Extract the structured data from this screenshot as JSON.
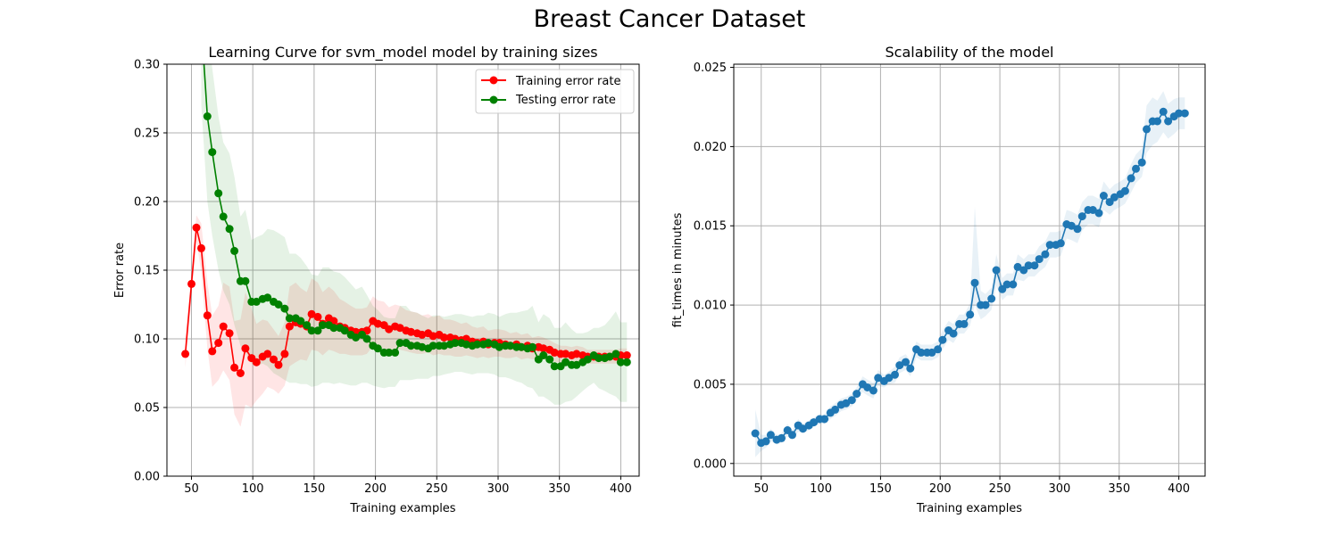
{
  "figure": {
    "title": "Breast Cancer Dataset"
  },
  "colors": {
    "train": "#ff0000",
    "test": "#008000",
    "fit": "#1f77b4",
    "grid": "#b0b0b0"
  },
  "chart_data": [
    {
      "type": "line",
      "title": "Learning Curve for svm_model model by training sizes",
      "xlabel": "Training examples",
      "ylabel": "Error rate",
      "xlim": [
        30,
        415
      ],
      "ylim": [
        0.0,
        0.3
      ],
      "xticks": [
        50,
        100,
        150,
        200,
        250,
        300,
        350,
        400
      ],
      "yticks": [
        0.0,
        0.05,
        0.1,
        0.15,
        0.2,
        0.25,
        0.3
      ],
      "ytick_labels": [
        "0.00",
        "0.05",
        "0.10",
        "0.15",
        "0.20",
        "0.25",
        "0.30"
      ],
      "grid": true,
      "legend": "top-right",
      "x": [
        45,
        50,
        54,
        58,
        63,
        67,
        72,
        76,
        81,
        85,
        90,
        94,
        99,
        103,
        108,
        112,
        117,
        121,
        126,
        130,
        135,
        139,
        144,
        148,
        153,
        157,
        162,
        166,
        171,
        175,
        180,
        184,
        189,
        193,
        198,
        202,
        207,
        211,
        216,
        220,
        225,
        229,
        234,
        238,
        243,
        247,
        252,
        256,
        261,
        265,
        270,
        274,
        279,
        283,
        288,
        292,
        297,
        301,
        306,
        310,
        315,
        319,
        324,
        328,
        333,
        337,
        342,
        346,
        351,
        355,
        360,
        364,
        369,
        373,
        378,
        382,
        387,
        391,
        396,
        400,
        405
      ],
      "series": [
        {
          "name": "Training error rate",
          "color": "#ff0000",
          "values": [
            0.089,
            0.14,
            0.181,
            0.166,
            0.117,
            0.091,
            0.097,
            0.109,
            0.104,
            0.079,
            0.075,
            0.093,
            0.086,
            0.083,
            0.087,
            0.089,
            0.085,
            0.081,
            0.089,
            0.109,
            0.112,
            0.111,
            0.109,
            0.118,
            0.116,
            0.111,
            0.115,
            0.113,
            0.109,
            0.108,
            0.106,
            0.105,
            0.105,
            0.106,
            0.113,
            0.111,
            0.11,
            0.107,
            0.109,
            0.108,
            0.106,
            0.105,
            0.104,
            0.103,
            0.104,
            0.102,
            0.103,
            0.101,
            0.101,
            0.1,
            0.099,
            0.1,
            0.098,
            0.097,
            0.098,
            0.096,
            0.097,
            0.097,
            0.096,
            0.095,
            0.096,
            0.094,
            0.095,
            0.093,
            0.094,
            0.093,
            0.092,
            0.09,
            0.089,
            0.089,
            0.088,
            0.089,
            0.088,
            0.087,
            0.087,
            0.087,
            0.087,
            0.087,
            0.087,
            0.088,
            0.088
          ],
          "lower": [
            0.079,
            0.13,
            0.172,
            0.148,
            0.093,
            0.065,
            0.07,
            0.077,
            0.07,
            0.045,
            0.036,
            0.052,
            0.05,
            0.055,
            0.06,
            0.065,
            0.063,
            0.06,
            0.066,
            0.08,
            0.083,
            0.085,
            0.084,
            0.092,
            0.091,
            0.088,
            0.092,
            0.091,
            0.089,
            0.089,
            0.088,
            0.088,
            0.088,
            0.089,
            0.095,
            0.094,
            0.093,
            0.091,
            0.093,
            0.092,
            0.091,
            0.09,
            0.089,
            0.089,
            0.09,
            0.088,
            0.089,
            0.088,
            0.088,
            0.087,
            0.087,
            0.088,
            0.087,
            0.086,
            0.087,
            0.086,
            0.087,
            0.087,
            0.086,
            0.086,
            0.087,
            0.085,
            0.086,
            0.085,
            0.086,
            0.085,
            0.085,
            0.083,
            0.083,
            0.083,
            0.082,
            0.083,
            0.082,
            0.082,
            0.082,
            0.082,
            0.082,
            0.082,
            0.082,
            0.083,
            0.083
          ],
          "upper": [
            0.099,
            0.15,
            0.19,
            0.184,
            0.141,
            0.117,
            0.124,
            0.141,
            0.138,
            0.113,
            0.114,
            0.134,
            0.122,
            0.111,
            0.114,
            0.113,
            0.107,
            0.102,
            0.112,
            0.138,
            0.141,
            0.137,
            0.134,
            0.144,
            0.141,
            0.134,
            0.138,
            0.135,
            0.129,
            0.127,
            0.124,
            0.122,
            0.122,
            0.123,
            0.131,
            0.128,
            0.127,
            0.123,
            0.125,
            0.124,
            0.121,
            0.12,
            0.119,
            0.117,
            0.118,
            0.116,
            0.117,
            0.114,
            0.114,
            0.113,
            0.111,
            0.112,
            0.109,
            0.108,
            0.109,
            0.106,
            0.107,
            0.107,
            0.106,
            0.104,
            0.105,
            0.103,
            0.104,
            0.101,
            0.102,
            0.101,
            0.099,
            0.097,
            0.095,
            0.095,
            0.094,
            0.095,
            0.094,
            0.092,
            0.092,
            0.092,
            0.092,
            0.092,
            0.092,
            0.093,
            0.093
          ]
        },
        {
          "name": "Testing error rate",
          "color": "#008000",
          "values": [
            null,
            null,
            null,
            0.33,
            0.262,
            0.236,
            0.206,
            0.189,
            0.18,
            0.164,
            0.142,
            0.142,
            0.127,
            0.127,
            0.129,
            0.13,
            0.127,
            0.125,
            0.122,
            0.115,
            0.115,
            0.113,
            0.11,
            0.106,
            0.106,
            0.11,
            0.11,
            0.108,
            0.108,
            0.106,
            0.103,
            0.101,
            0.103,
            0.1,
            0.095,
            0.093,
            0.09,
            0.09,
            0.09,
            0.097,
            0.097,
            0.095,
            0.095,
            0.094,
            0.093,
            0.095,
            0.095,
            0.095,
            0.096,
            0.097,
            0.097,
            0.096,
            0.095,
            0.096,
            0.096,
            0.097,
            0.096,
            0.094,
            0.095,
            0.095,
            0.094,
            0.094,
            0.093,
            0.094,
            0.085,
            0.088,
            0.085,
            0.08,
            0.08,
            0.083,
            0.081,
            0.081,
            0.083,
            0.085,
            0.088,
            0.086,
            0.086,
            0.087,
            0.089,
            0.083,
            0.083
          ],
          "lower": [
            null,
            null,
            null,
            0.27,
            0.2,
            0.175,
            0.15,
            0.135,
            0.125,
            0.11,
            0.095,
            0.09,
            0.082,
            0.08,
            0.082,
            0.08,
            0.075,
            0.073,
            0.07,
            0.068,
            0.068,
            0.067,
            0.067,
            0.065,
            0.066,
            0.068,
            0.068,
            0.067,
            0.068,
            0.067,
            0.066,
            0.066,
            0.068,
            0.068,
            0.066,
            0.065,
            0.064,
            0.065,
            0.065,
            0.07,
            0.07,
            0.07,
            0.071,
            0.071,
            0.071,
            0.073,
            0.073,
            0.074,
            0.075,
            0.076,
            0.076,
            0.075,
            0.074,
            0.075,
            0.075,
            0.075,
            0.074,
            0.072,
            0.072,
            0.071,
            0.069,
            0.068,
            0.065,
            0.064,
            0.058,
            0.058,
            0.055,
            0.052,
            0.052,
            0.054,
            0.055,
            0.058,
            0.062,
            0.065,
            0.068,
            0.064,
            0.062,
            0.06,
            0.058,
            0.054,
            0.054
          ],
          "upper": [
            null,
            null,
            null,
            0.39,
            0.324,
            0.297,
            0.262,
            0.243,
            0.235,
            0.218,
            0.189,
            0.194,
            0.172,
            0.174,
            0.176,
            0.18,
            0.179,
            0.177,
            0.174,
            0.162,
            0.162,
            0.159,
            0.153,
            0.147,
            0.146,
            0.152,
            0.152,
            0.149,
            0.148,
            0.145,
            0.14,
            0.136,
            0.138,
            0.132,
            0.124,
            0.121,
            0.116,
            0.115,
            0.115,
            0.124,
            0.124,
            0.12,
            0.119,
            0.117,
            0.115,
            0.117,
            0.117,
            0.116,
            0.117,
            0.118,
            0.118,
            0.117,
            0.116,
            0.117,
            0.117,
            0.119,
            0.118,
            0.116,
            0.118,
            0.119,
            0.119,
            0.12,
            0.121,
            0.124,
            0.112,
            0.118,
            0.115,
            0.108,
            0.108,
            0.112,
            0.107,
            0.104,
            0.104,
            0.105,
            0.108,
            0.108,
            0.11,
            0.114,
            0.12,
            0.112,
            0.112
          ]
        }
      ]
    },
    {
      "type": "line",
      "title": "Scalability of the model",
      "xlabel": "Training examples",
      "ylabel": "fit_times in minutes",
      "xlim": [
        27,
        422
      ],
      "ylim": [
        -0.0008,
        0.0252
      ],
      "xticks": [
        50,
        100,
        150,
        200,
        250,
        300,
        350,
        400
      ],
      "yticks": [
        0.0,
        0.005,
        0.01,
        0.015,
        0.02,
        0.025
      ],
      "ytick_labels": [
        "0.000",
        "0.005",
        "0.010",
        "0.015",
        "0.020",
        "0.025"
      ],
      "grid": true,
      "x": [
        45,
        50,
        54,
        58,
        63,
        67,
        72,
        76,
        81,
        85,
        90,
        94,
        99,
        103,
        108,
        112,
        117,
        121,
        126,
        130,
        135,
        139,
        144,
        148,
        153,
        157,
        162,
        166,
        171,
        175,
        180,
        184,
        189,
        193,
        198,
        202,
        207,
        211,
        216,
        220,
        225,
        229,
        234,
        238,
        243,
        247,
        252,
        256,
        261,
        265,
        270,
        274,
        279,
        283,
        288,
        292,
        297,
        301,
        306,
        310,
        315,
        319,
        324,
        328,
        333,
        337,
        342,
        346,
        351,
        355,
        360,
        364,
        369,
        373,
        378,
        382,
        387,
        391,
        396,
        400,
        405
      ],
      "series": [
        {
          "name": "",
          "color": "#1f77b4",
          "values": [
            0.0019,
            0.0013,
            0.0014,
            0.0018,
            0.0015,
            0.0016,
            0.0021,
            0.0018,
            0.0024,
            0.0022,
            0.0024,
            0.0026,
            0.0028,
            0.0028,
            0.0032,
            0.0034,
            0.0037,
            0.0038,
            0.004,
            0.0044,
            0.005,
            0.0048,
            0.0046,
            0.0054,
            0.0052,
            0.0054,
            0.0056,
            0.0062,
            0.0064,
            0.006,
            0.0072,
            0.007,
            0.007,
            0.007,
            0.0072,
            0.0078,
            0.0084,
            0.0082,
            0.0088,
            0.0088,
            0.0094,
            0.0114,
            0.01,
            0.01,
            0.0104,
            0.0122,
            0.011,
            0.0113,
            0.0113,
            0.0124,
            0.0122,
            0.0125,
            0.0125,
            0.0129,
            0.0132,
            0.0138,
            0.0138,
            0.0139,
            0.0151,
            0.015,
            0.0148,
            0.0156,
            0.016,
            0.016,
            0.0158,
            0.0169,
            0.0165,
            0.0168,
            0.017,
            0.0172,
            0.018,
            0.0186,
            0.019,
            0.0211,
            0.0216,
            0.0216,
            0.0222,
            0.0216,
            0.0219,
            0.0221,
            0.0221
          ],
          "lower": [
            0.0004,
            0.0008,
            0.001,
            0.0014,
            0.0012,
            0.0013,
            0.0017,
            0.0015,
            0.002,
            0.0019,
            0.0021,
            0.0023,
            0.0025,
            0.0025,
            0.0028,
            0.003,
            0.0033,
            0.0034,
            0.0036,
            0.004,
            0.0045,
            0.0043,
            0.0041,
            0.0049,
            0.0048,
            0.005,
            0.0051,
            0.0057,
            0.0059,
            0.0055,
            0.0067,
            0.0065,
            0.0065,
            0.0065,
            0.0067,
            0.0072,
            0.0078,
            0.0076,
            0.0082,
            0.0082,
            0.0087,
            0.01,
            0.0091,
            0.0093,
            0.0097,
            0.0112,
            0.0103,
            0.0106,
            0.0106,
            0.0116,
            0.0115,
            0.0118,
            0.0118,
            0.0121,
            0.0124,
            0.013,
            0.013,
            0.0131,
            0.0142,
            0.0141,
            0.0139,
            0.0147,
            0.0151,
            0.0151,
            0.0149,
            0.016,
            0.0157,
            0.016,
            0.0162,
            0.0164,
            0.0171,
            0.0177,
            0.0181,
            0.0196,
            0.0201,
            0.0203,
            0.0209,
            0.0205,
            0.0208,
            0.0211,
            0.0211
          ],
          "upper": [
            0.0034,
            0.0018,
            0.0018,
            0.0022,
            0.0018,
            0.0019,
            0.0025,
            0.0021,
            0.0028,
            0.0025,
            0.0027,
            0.0029,
            0.0031,
            0.0031,
            0.0036,
            0.0038,
            0.0041,
            0.0042,
            0.0044,
            0.0048,
            0.0055,
            0.0053,
            0.0051,
            0.0059,
            0.0056,
            0.0058,
            0.0061,
            0.0067,
            0.0069,
            0.0065,
            0.0077,
            0.0075,
            0.0075,
            0.0075,
            0.0077,
            0.0084,
            0.009,
            0.0088,
            0.0094,
            0.0094,
            0.0101,
            0.0162,
            0.0109,
            0.0107,
            0.0111,
            0.0132,
            0.0117,
            0.012,
            0.012,
            0.0132,
            0.0129,
            0.0132,
            0.0132,
            0.0137,
            0.014,
            0.0146,
            0.0146,
            0.0147,
            0.016,
            0.0159,
            0.0157,
            0.0165,
            0.0169,
            0.0169,
            0.0167,
            0.0178,
            0.0173,
            0.0176,
            0.0178,
            0.018,
            0.0189,
            0.0195,
            0.0199,
            0.0226,
            0.0231,
            0.0229,
            0.0235,
            0.0227,
            0.023,
            0.0231,
            0.0231
          ]
        }
      ]
    }
  ]
}
